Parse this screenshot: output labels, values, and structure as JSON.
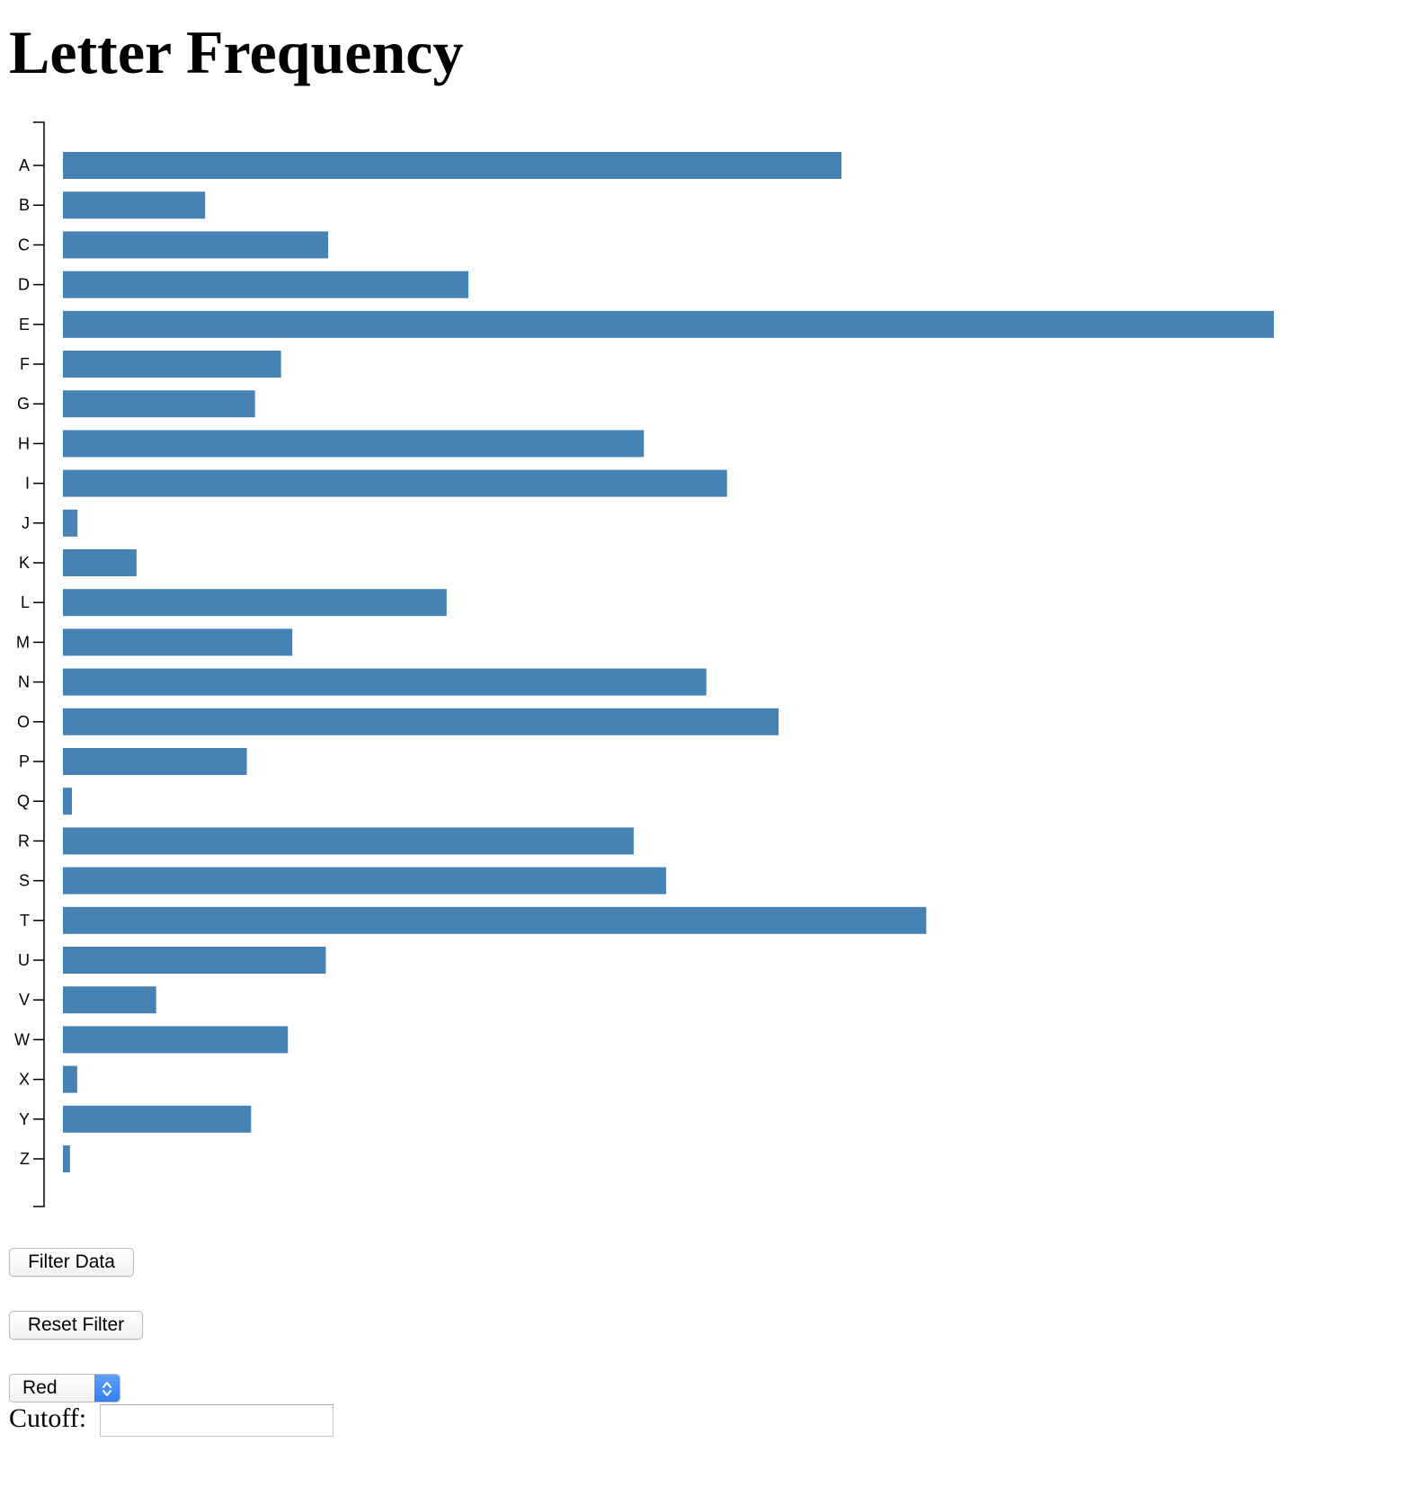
{
  "page": {
    "title": "Letter Frequency"
  },
  "chart_data": {
    "type": "bar",
    "orientation": "horizontal",
    "title": "",
    "xlabel": "",
    "ylabel": "",
    "bar_color": "#4682b4",
    "categories": [
      "A",
      "B",
      "C",
      "D",
      "E",
      "F",
      "G",
      "H",
      "I",
      "J",
      "K",
      "L",
      "M",
      "N",
      "O",
      "P",
      "Q",
      "R",
      "S",
      "T",
      "U",
      "V",
      "W",
      "X",
      "Y",
      "Z"
    ],
    "values": [
      0.08167,
      0.01492,
      0.02782,
      0.04253,
      0.12702,
      0.02288,
      0.02015,
      0.06094,
      0.06966,
      0.00153,
      0.00772,
      0.04025,
      0.02406,
      0.06749,
      0.07507,
      0.01929,
      0.00095,
      0.05987,
      0.06327,
      0.09056,
      0.02758,
      0.00978,
      0.0236,
      0.0015,
      0.01974,
      0.00074
    ],
    "xlim": [
      0,
      0.12702
    ]
  },
  "controls": {
    "filter_label": "Filter Data",
    "reset_label": "Reset Filter",
    "color_select_value": "Red",
    "cutoff_label": "Cutoff:",
    "cutoff_value": ""
  }
}
